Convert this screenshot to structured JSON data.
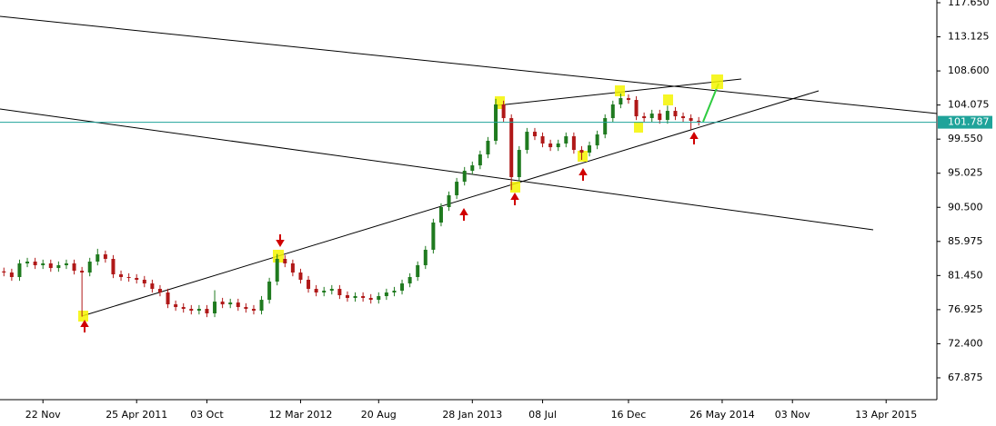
{
  "chart_data": {
    "type": "candlestick",
    "categories": [
      null,
      null,
      null,
      null,
      null,
      "22 Nov",
      null,
      null,
      null,
      null,
      null,
      null,
      null,
      null,
      null,
      null,
      null,
      "25 Apr 2011",
      null,
      null,
      null,
      null,
      null,
      null,
      null,
      null,
      "03 Oct",
      null,
      null,
      null,
      null,
      null,
      null,
      null,
      null,
      null,
      null,
      null,
      "12 Mar 2012",
      null,
      null,
      null,
      null,
      null,
      null,
      null,
      null,
      null,
      "20 Aug",
      null,
      null,
      null,
      null,
      null,
      null,
      null,
      null,
      null,
      null,
      null,
      "28 Jan 2013",
      null,
      null,
      null,
      null,
      null,
      null,
      null,
      null,
      "08 Jul",
      null,
      null,
      null,
      null,
      null,
      null,
      null,
      null,
      null,
      null,
      "16 Dec",
      null,
      null,
      null,
      null,
      null,
      null,
      null,
      null,
      null,
      null,
      null,
      "26 May 2014",
      null,
      null,
      null,
      null,
      null,
      null,
      null,
      null,
      "03 Nov",
      null,
      null,
      null,
      null,
      null,
      null,
      null,
      null,
      null,
      null,
      null,
      "13 Apr 2015",
      null,
      null,
      null,
      null,
      null,
      null
    ],
    "open": [
      82.0,
      81.85,
      81.25,
      83.06,
      83.3,
      82.82,
      83.06,
      82.45,
      82.82,
      83.06,
      82.09,
      81.85,
      83.3,
      84.26,
      83.66,
      81.61,
      81.25,
      81.13,
      80.89,
      80.4,
      79.68,
      79.2,
      77.63,
      77.27,
      77.03,
      76.79,
      77.03,
      76.43,
      77.99,
      77.63,
      77.87,
      77.27,
      77.03,
      76.79,
      78.23,
      80.65,
      83.66,
      83.06,
      81.85,
      80.89,
      79.68,
      79.2,
      79.44,
      79.68,
      78.84,
      78.48,
      78.72,
      78.48,
      78.23,
      78.72,
      79.2,
      79.44,
      80.4,
      81.25,
      82.82,
      84.87,
      88.48,
      90.53,
      92.1,
      93.9,
      95.35,
      96.07,
      97.52,
      99.33,
      104.15,
      102.34,
      94.51,
      98.12,
      100.53,
      99.93,
      98.97,
      98.48,
      98.97,
      99.93,
      98.12,
      97.76,
      98.72,
      100.17,
      102.34,
      104.15,
      104.99,
      104.75,
      102.58,
      102.34,
      102.94,
      102.1,
      103.3,
      102.58,
      102.34,
      101.98,
      null,
      null,
      null,
      null,
      null,
      null,
      null,
      null,
      null,
      null,
      null,
      null,
      null,
      null,
      null,
      null,
      null,
      null,
      null,
      null,
      null,
      null,
      null,
      null,
      null,
      null,
      null,
      null,
      null,
      null
    ],
    "high": [
      82.5,
      82.35,
      83.56,
      83.8,
      83.8,
      83.56,
      83.56,
      83.32,
      83.56,
      83.56,
      82.59,
      83.8,
      85.0,
      84.76,
      84.16,
      82.11,
      81.75,
      81.63,
      81.39,
      80.9,
      80.18,
      79.7,
      78.13,
      77.77,
      77.53,
      77.53,
      77.53,
      79.5,
      78.49,
      78.37,
      78.37,
      77.77,
      77.53,
      78.73,
      81.15,
      84.3,
      84.16,
      83.56,
      82.35,
      81.39,
      80.18,
      79.94,
      80.18,
      80.18,
      79.34,
      79.22,
      79.22,
      78.98,
      79.22,
      79.7,
      79.94,
      80.9,
      81.75,
      83.32,
      85.37,
      88.98,
      91.03,
      92.6,
      94.4,
      95.85,
      96.57,
      98.02,
      99.83,
      104.9,
      104.65,
      102.84,
      98.62,
      101.03,
      101.03,
      100.43,
      99.47,
      99.47,
      100.43,
      100.43,
      98.62,
      99.22,
      100.67,
      102.84,
      104.65,
      105.6,
      105.49,
      105.25,
      103.08,
      103.44,
      103.44,
      104.0,
      103.8,
      103.08,
      102.84,
      102.48,
      null,
      null,
      null,
      null,
      null,
      null,
      null,
      null,
      null,
      null,
      null,
      null,
      null,
      null,
      null,
      null,
      null,
      null,
      null,
      null,
      null,
      null,
      null,
      null,
      null,
      null,
      null,
      null,
      null,
      null
    ],
    "low": [
      81.35,
      80.75,
      80.75,
      82.56,
      82.32,
      82.32,
      81.95,
      81.95,
      82.32,
      81.59,
      76.0,
      81.35,
      82.8,
      83.16,
      81.11,
      80.75,
      80.63,
      80.39,
      79.9,
      79.18,
      78.7,
      77.13,
      76.77,
      76.53,
      76.29,
      76.29,
      75.93,
      75.93,
      77.13,
      77.13,
      76.77,
      76.53,
      76.29,
      76.29,
      77.73,
      80.15,
      82.56,
      81.35,
      80.39,
      79.18,
      78.7,
      78.7,
      78.94,
      78.34,
      77.98,
      77.98,
      77.98,
      77.73,
      77.73,
      78.22,
      78.7,
      78.94,
      79.9,
      80.75,
      82.32,
      84.37,
      87.98,
      90.03,
      91.6,
      93.4,
      94.85,
      95.57,
      97.02,
      98.83,
      101.84,
      92.8,
      94.01,
      97.62,
      99.43,
      98.47,
      97.98,
      97.98,
      98.47,
      97.62,
      96.8,
      97.26,
      98.22,
      99.67,
      101.84,
      103.65,
      104.25,
      102.08,
      101.84,
      101.84,
      101.6,
      101.6,
      102.08,
      101.84,
      100.8,
      101.36,
      null,
      null,
      null,
      null,
      null,
      null,
      null,
      null,
      null,
      null,
      null,
      null,
      null,
      null,
      null,
      null,
      null,
      null,
      null,
      null,
      null,
      null,
      null,
      null,
      null,
      null,
      null,
      null,
      null,
      null
    ],
    "close": [
      81.85,
      81.25,
      83.06,
      83.3,
      82.82,
      83.06,
      82.45,
      82.82,
      83.06,
      82.09,
      81.85,
      83.3,
      84.26,
      83.66,
      81.61,
      81.25,
      81.13,
      80.89,
      80.4,
      79.68,
      79.2,
      77.63,
      77.27,
      77.03,
      76.79,
      77.03,
      76.43,
      77.99,
      77.63,
      77.87,
      77.27,
      77.03,
      76.79,
      78.23,
      80.65,
      83.66,
      83.06,
      81.85,
      80.89,
      79.68,
      79.2,
      79.44,
      79.68,
      78.84,
      78.48,
      78.72,
      78.48,
      78.23,
      78.72,
      79.2,
      79.44,
      80.4,
      81.25,
      82.82,
      84.87,
      88.48,
      90.53,
      92.1,
      93.9,
      95.35,
      96.07,
      97.52,
      99.33,
      104.15,
      102.34,
      94.51,
      98.12,
      100.53,
      99.93,
      98.97,
      98.48,
      98.97,
      99.93,
      98.12,
      97.76,
      98.72,
      100.17,
      102.34,
      104.15,
      104.99,
      104.75,
      102.58,
      102.34,
      102.94,
      102.1,
      103.3,
      102.58,
      102.34,
      101.98,
      101.86,
      null,
      null,
      null,
      null,
      null,
      null,
      null,
      null,
      null,
      null,
      null,
      null,
      null,
      null,
      null,
      null,
      null,
      null,
      null,
      null,
      null,
      null,
      null,
      null,
      null,
      null,
      null,
      null,
      null,
      null
    ],
    "up_color": "#1f7a1f",
    "down_color": "#b01818",
    "last_price": {
      "value": 101.787,
      "label": "101.787"
    },
    "last_price_color": "#1fa39a",
    "ylim": [
      64.98,
      118.01
    ],
    "yticks": [
      {
        "value": 117.65,
        "label": "117.650"
      },
      113.125,
      {
        "value": 108.6,
        "label": "108.600"
      },
      104.075,
      {
        "value": 99.55,
        "label": "99.550"
      },
      95.025,
      {
        "value": 90.5,
        "label": "90.500"
      },
      85.975,
      {
        "value": 81.45,
        "label": "81.450"
      },
      76.925,
      {
        "value": 72.4,
        "label": "72.400"
      },
      67.875
    ]
  }
}
